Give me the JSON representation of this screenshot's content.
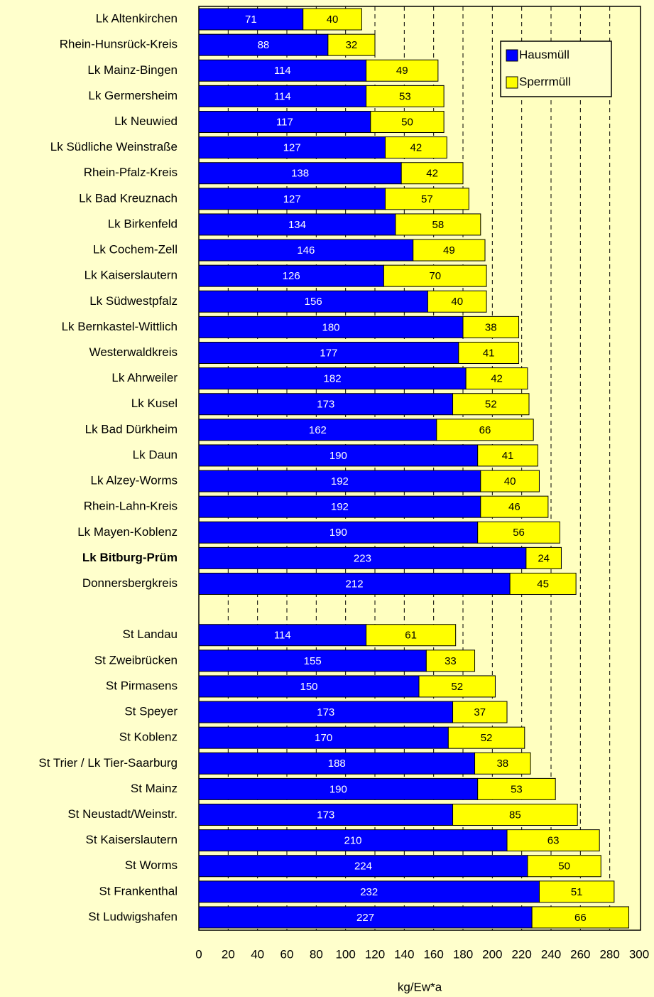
{
  "chart_data": {
    "type": "stacked-bar",
    "orientation": "horizontal",
    "x_label": "kg/Ew*a",
    "categories": [
      "Lk Altenkirchen",
      "Rhein-Hunsrück-Kreis",
      "Lk Mainz-Bingen",
      "Lk Germersheim",
      "Lk Neuwied",
      "Lk Südliche Weinstraße",
      "Rhein-Pfalz-Kreis",
      "Lk Bad Kreuznach",
      "Lk Birkenfeld",
      "Lk Cochem-Zell",
      "Lk Kaiserslautern",
      "Lk Südwestpfalz",
      "Lk Bernkastel-Wittlich",
      "Westerwaldkreis",
      "Lk Ahrweiler",
      "Lk Kusel",
      "Lk Bad Dürkheim",
      "Lk Daun",
      "Lk Alzey-Worms",
      "Rhein-Lahn-Kreis",
      "Lk Mayen-Koblenz",
      "Lk Bitburg-Prüm",
      "Donnersbergkreis",
      null,
      "St Landau",
      "St Zweibrücken",
      "St Pirmasens",
      "St Speyer",
      "St Koblenz",
      "St Trier / Lk Tier-Saarburg",
      "St Mainz",
      "St Neustadt/Weinstr.",
      "St Kaiserslautern",
      "St Worms",
      "St Frankenthal",
      "St Ludwigshafen"
    ],
    "highlight": "Lk Bitburg-Prüm",
    "series": [
      {
        "name": "Hausmüll",
        "color": "#0000ff",
        "label_color": "#ffffff",
        "values": [
          71,
          88,
          114,
          114,
          117,
          127,
          138,
          127,
          134,
          146,
          126,
          156,
          180,
          177,
          182,
          173,
          162,
          190,
          192,
          192,
          190,
          223,
          212,
          null,
          114,
          155,
          150,
          173,
          170,
          188,
          190,
          173,
          210,
          224,
          232,
          227
        ]
      },
      {
        "name": "Sperrmüll",
        "color": "#ffff00",
        "label_color": "#000000",
        "values": [
          40,
          32,
          49,
          53,
          50,
          42,
          42,
          57,
          58,
          49,
          70,
          40,
          38,
          41,
          42,
          52,
          66,
          41,
          40,
          46,
          56,
          24,
          45,
          null,
          61,
          33,
          52,
          37,
          52,
          38,
          53,
          85,
          63,
          50,
          51,
          66
        ]
      }
    ],
    "xlim": [
      0,
      300
    ],
    "xticks": [
      0,
      20,
      40,
      60,
      80,
      100,
      120,
      140,
      160,
      180,
      200,
      220,
      240,
      260,
      280,
      300
    ],
    "grid": true,
    "legend": "upper right"
  }
}
